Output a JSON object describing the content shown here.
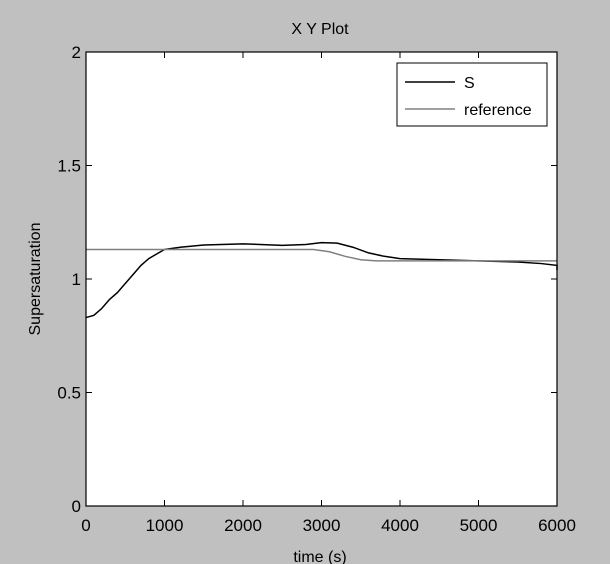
{
  "colors": {
    "figure_background": "#c0c0c0",
    "axes_background": "#ffffff",
    "axes_edge": "#000000",
    "text": "#000000"
  },
  "chart_data": {
    "type": "line",
    "title": "X Y Plot",
    "xlabel": "time (s)",
    "ylabel": "Supersaturation",
    "xlim": [
      0,
      6000
    ],
    "ylim": [
      0,
      2
    ],
    "xticks": [
      0,
      1000,
      2000,
      3000,
      4000,
      5000,
      6000
    ],
    "xtick_labels": [
      "0",
      "1000",
      "2000",
      "3000",
      "4000",
      "5000",
      "6000"
    ],
    "yticks": [
      0,
      0.5,
      1,
      1.5,
      2
    ],
    "ytick_labels": [
      "0",
      "0.5",
      "1",
      "1.5",
      "2"
    ],
    "grid": false,
    "legend_position": "top-right",
    "series": [
      {
        "name": "S",
        "color": "#000000",
        "points": [
          [
            0,
            0.83
          ],
          [
            100,
            0.84
          ],
          [
            200,
            0.87
          ],
          [
            300,
            0.91
          ],
          [
            400,
            0.94
          ],
          [
            500,
            0.98
          ],
          [
            600,
            1.02
          ],
          [
            700,
            1.06
          ],
          [
            800,
            1.09
          ],
          [
            900,
            1.11
          ],
          [
            1000,
            1.13
          ],
          [
            1200,
            1.14
          ],
          [
            1500,
            1.15
          ],
          [
            2000,
            1.155
          ],
          [
            2500,
            1.148
          ],
          [
            2800,
            1.152
          ],
          [
            3000,
            1.16
          ],
          [
            3200,
            1.158
          ],
          [
            3400,
            1.14
          ],
          [
            3600,
            1.115
          ],
          [
            3800,
            1.1
          ],
          [
            4000,
            1.09
          ],
          [
            4500,
            1.085
          ],
          [
            5000,
            1.08
          ],
          [
            5500,
            1.075
          ],
          [
            5800,
            1.068
          ],
          [
            6000,
            1.06
          ],
          [
            6100,
            1.04
          ]
        ]
      },
      {
        "name": "reference",
        "color": "#808080",
        "points": [
          [
            0,
            1.13
          ],
          [
            1000,
            1.13
          ],
          [
            2000,
            1.13
          ],
          [
            2900,
            1.13
          ],
          [
            3100,
            1.12
          ],
          [
            3300,
            1.1
          ],
          [
            3500,
            1.085
          ],
          [
            3700,
            1.08
          ],
          [
            4000,
            1.08
          ],
          [
            5000,
            1.08
          ],
          [
            6100,
            1.08
          ]
        ]
      }
    ]
  }
}
